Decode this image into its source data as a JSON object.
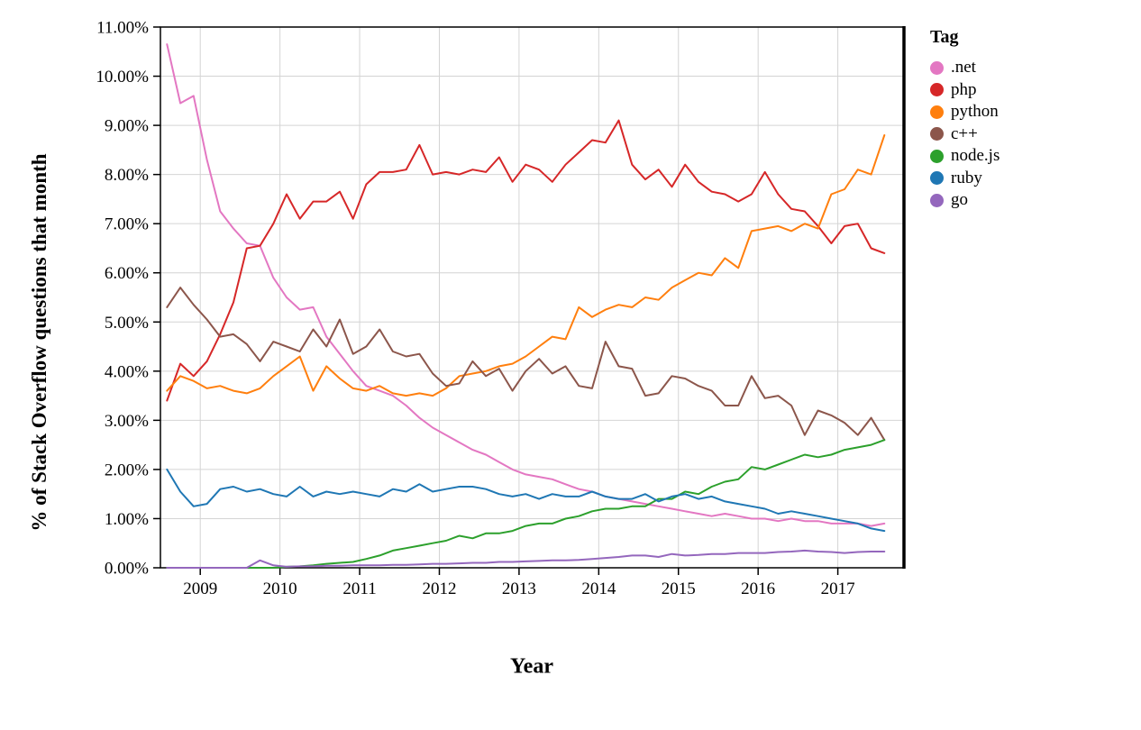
{
  "chart_data": {
    "type": "line",
    "title": "",
    "xlabel": "Year",
    "ylabel": "% of Stack Overflow questions that month",
    "xlim": [
      2008.5,
      2017.83
    ],
    "ylim": [
      0,
      11
    ],
    "grid": true,
    "legend_title": "Tag",
    "legend_position": "right",
    "x_ticks": [
      2009,
      2010,
      2011,
      2012,
      2013,
      2014,
      2015,
      2016,
      2017
    ],
    "y_ticks": [
      0,
      1,
      2,
      3,
      4,
      5,
      6,
      7,
      8,
      9,
      10,
      11
    ],
    "y_tick_labels": [
      "0.00%",
      "1.00%",
      "2.00%",
      "3.00%",
      "4.00%",
      "5.00%",
      "6.00%",
      "7.00%",
      "8.00%",
      "9.00%",
      "10.00%",
      "11.00%"
    ],
    "x_start": 2008.583,
    "x_step": 0.1667,
    "series": [
      {
        "name": ".net",
        "color": "#e377c2",
        "values": [
          10.65,
          9.45,
          9.6,
          8.3,
          7.25,
          6.9,
          6.6,
          6.55,
          5.9,
          5.5,
          5.25,
          5.3,
          4.7,
          4.35,
          4.0,
          3.7,
          3.6,
          3.5,
          3.3,
          3.05,
          2.85,
          2.7,
          2.55,
          2.4,
          2.3,
          2.15,
          2.0,
          1.9,
          1.85,
          1.8,
          1.7,
          1.6,
          1.55,
          1.45,
          1.4,
          1.35,
          1.3,
          1.25,
          1.2,
          1.15,
          1.1,
          1.05,
          1.1,
          1.05,
          1.0,
          1.0,
          0.95,
          1.0,
          0.95,
          0.95,
          0.9,
          0.9,
          0.9,
          0.85,
          0.9
        ]
      },
      {
        "name": "php",
        "color": "#d62728",
        "values": [
          3.4,
          4.15,
          3.9,
          4.2,
          4.75,
          5.4,
          6.5,
          6.55,
          7.0,
          7.6,
          7.1,
          7.45,
          7.45,
          7.65,
          7.1,
          7.8,
          8.05,
          8.05,
          8.1,
          8.6,
          8.0,
          8.05,
          8.0,
          8.1,
          8.05,
          8.35,
          7.85,
          8.2,
          8.1,
          7.85,
          8.2,
          8.45,
          8.7,
          8.65,
          9.1,
          8.2,
          7.9,
          8.1,
          7.75,
          8.2,
          7.85,
          7.65,
          7.6,
          7.45,
          7.6,
          8.05,
          7.6,
          7.3,
          7.25,
          6.95,
          6.6,
          6.95,
          7.0,
          6.5,
          6.4
        ]
      },
      {
        "name": "python",
        "color": "#ff7f0e",
        "values": [
          3.6,
          3.9,
          3.8,
          3.65,
          3.7,
          3.6,
          3.55,
          3.65,
          3.9,
          4.1,
          4.3,
          3.6,
          4.1,
          3.85,
          3.65,
          3.6,
          3.7,
          3.55,
          3.5,
          3.55,
          3.5,
          3.65,
          3.9,
          3.95,
          4.0,
          4.1,
          4.15,
          4.3,
          4.5,
          4.7,
          4.65,
          5.3,
          5.1,
          5.25,
          5.35,
          5.3,
          5.5,
          5.45,
          5.7,
          5.85,
          6.0,
          5.95,
          6.3,
          6.1,
          6.85,
          6.9,
          6.95,
          6.85,
          7.0,
          6.9,
          7.6,
          7.7,
          8.1,
          8.0,
          8.8
        ]
      },
      {
        "name": "c++",
        "color": "#8c564b",
        "values": [
          5.3,
          5.7,
          5.35,
          5.05,
          4.7,
          4.75,
          4.55,
          4.2,
          4.6,
          4.5,
          4.4,
          4.85,
          4.5,
          5.05,
          4.35,
          4.5,
          4.85,
          4.4,
          4.3,
          4.35,
          3.95,
          3.7,
          3.75,
          4.2,
          3.9,
          4.05,
          3.6,
          4.0,
          4.25,
          3.95,
          4.1,
          3.7,
          3.65,
          4.6,
          4.1,
          4.05,
          3.5,
          3.55,
          3.9,
          3.85,
          3.7,
          3.6,
          3.3,
          3.3,
          3.9,
          3.45,
          3.5,
          3.3,
          2.7,
          3.2,
          3.1,
          2.95,
          2.7,
          3.05,
          2.6
        ]
      },
      {
        "name": "node.js",
        "color": "#2ca02c",
        "values": [
          0.0,
          0.0,
          0.0,
          0.0,
          0.0,
          0.0,
          0.0,
          0.0,
          0.0,
          0.02,
          0.03,
          0.05,
          0.08,
          0.1,
          0.12,
          0.18,
          0.25,
          0.35,
          0.4,
          0.45,
          0.5,
          0.55,
          0.65,
          0.6,
          0.7,
          0.7,
          0.75,
          0.85,
          0.9,
          0.9,
          1.0,
          1.05,
          1.15,
          1.2,
          1.2,
          1.25,
          1.25,
          1.4,
          1.4,
          1.55,
          1.5,
          1.65,
          1.75,
          1.8,
          2.05,
          2.0,
          2.1,
          2.2,
          2.3,
          2.25,
          2.3,
          2.4,
          2.45,
          2.5,
          2.6
        ]
      },
      {
        "name": "ruby",
        "color": "#1f77b4",
        "values": [
          2.0,
          1.55,
          1.25,
          1.3,
          1.6,
          1.65,
          1.55,
          1.6,
          1.5,
          1.45,
          1.65,
          1.45,
          1.55,
          1.5,
          1.55,
          1.5,
          1.45,
          1.6,
          1.55,
          1.7,
          1.55,
          1.6,
          1.65,
          1.65,
          1.6,
          1.5,
          1.45,
          1.5,
          1.4,
          1.5,
          1.45,
          1.45,
          1.55,
          1.45,
          1.4,
          1.4,
          1.5,
          1.35,
          1.45,
          1.5,
          1.4,
          1.45,
          1.35,
          1.3,
          1.25,
          1.2,
          1.1,
          1.15,
          1.1,
          1.05,
          1.0,
          0.95,
          0.9,
          0.8,
          0.75
        ]
      },
      {
        "name": "go",
        "color": "#9467bd",
        "values": [
          0.0,
          0.0,
          0.0,
          0.0,
          0.0,
          0.0,
          0.0,
          0.15,
          0.05,
          0.02,
          0.03,
          0.03,
          0.04,
          0.04,
          0.05,
          0.05,
          0.05,
          0.06,
          0.06,
          0.07,
          0.08,
          0.08,
          0.09,
          0.1,
          0.1,
          0.12,
          0.12,
          0.13,
          0.14,
          0.15,
          0.15,
          0.16,
          0.18,
          0.2,
          0.22,
          0.25,
          0.25,
          0.22,
          0.28,
          0.25,
          0.26,
          0.28,
          0.28,
          0.3,
          0.3,
          0.3,
          0.32,
          0.33,
          0.35,
          0.33,
          0.32,
          0.3,
          0.32,
          0.33,
          0.33
        ]
      }
    ]
  }
}
